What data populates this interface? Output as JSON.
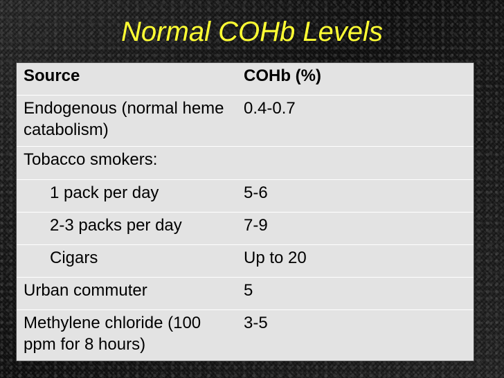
{
  "slide": {
    "title": "Normal COHb Levels"
  },
  "table": {
    "headers": [
      "Source",
      "COHb (%)"
    ],
    "rows": [
      {
        "source": "Endogenous (normal heme catabolism)",
        "cohb": "0.4-0.7"
      },
      {
        "source": "Tobacco smokers:",
        "cohb": ""
      },
      {
        "source": "1 pack per day",
        "cohb": "5-6"
      },
      {
        "source": "2-3 packs per day",
        "cohb": "7-9"
      },
      {
        "source": "Cigars",
        "cohb": "Up to 20"
      },
      {
        "source": "Urban commuter",
        "cohb": "5"
      },
      {
        "source": "Methylene chloride (100 ppm for 8 hours)",
        "cohb": "3-5"
      }
    ]
  },
  "colors": {
    "title": "#ffff33",
    "table_background": "#e3e3e3",
    "slide_background": "#141414"
  }
}
